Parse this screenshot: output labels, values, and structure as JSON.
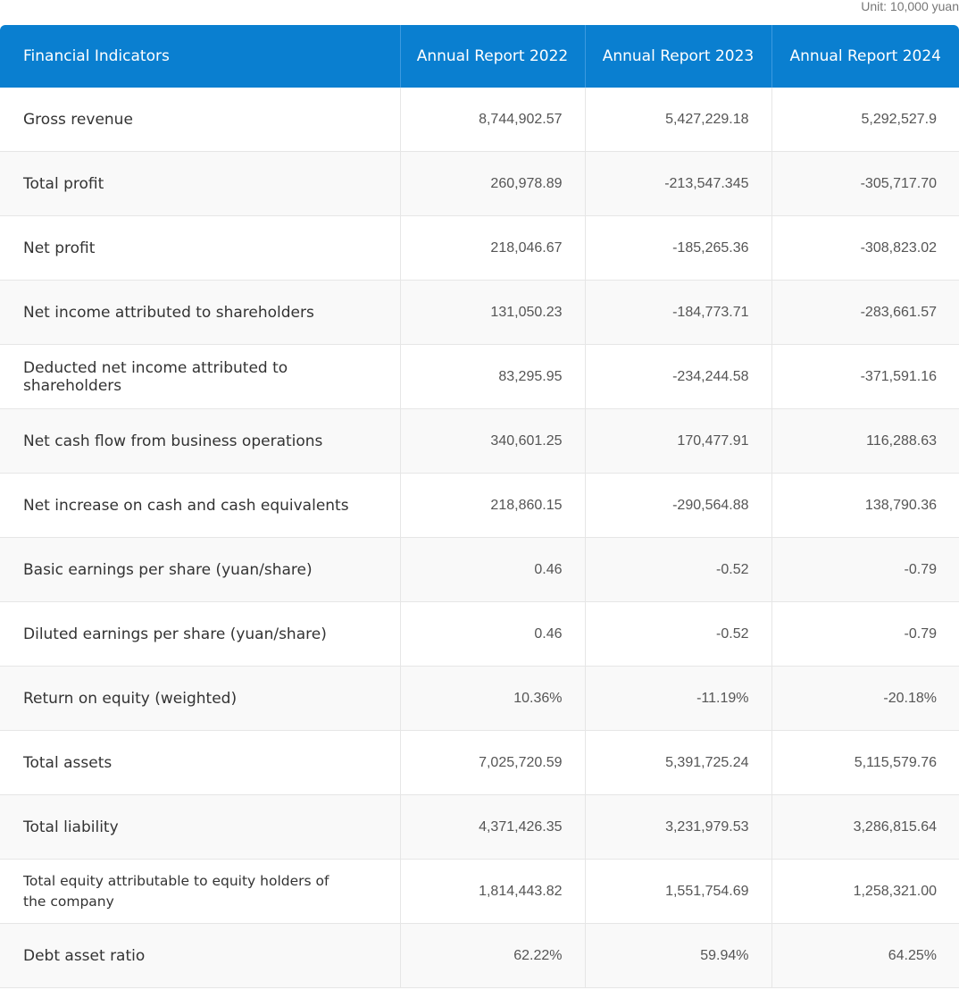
{
  "unit": "Unit: 10,000 yuan",
  "table": {
    "header": [
      "Financial Indicators",
      "Annual Report 2022",
      "Annual Report 2023",
      "Annual Report 2024"
    ],
    "rows": [
      [
        "Gross revenue",
        "8,744,902.57",
        "5,427,229.18",
        "5,292,527.9"
      ],
      [
        "Total profit",
        "260,978.89",
        "-213,547.345",
        "-305,717.70"
      ],
      [
        "Net profit",
        "218,046.67",
        "-185,265.36",
        "-308,823.02"
      ],
      [
        "Net income attributed to shareholders",
        "131,050.23",
        "-184,773.71",
        "-283,661.57"
      ],
      [
        "Deducted net income attributed to shareholders",
        "83,295.95",
        "-234,244.58",
        "-371,591.16"
      ],
      [
        "Net cash flow from business operations",
        "340,601.25",
        "170,477.91",
        "116,288.63"
      ],
      [
        "Net increase on cash and cash equivalents",
        "218,860.15",
        "-290,564.88",
        "138,790.36"
      ],
      [
        "Basic earnings per share (yuan/share)",
        "0.46",
        "-0.52",
        "-0.79"
      ],
      [
        "Diluted earnings per share (yuan/share)",
        "0.46",
        "-0.52",
        "-0.79"
      ],
      [
        "Return on equity (weighted)",
        "10.36%",
        "-11.19%",
        "-20.18%"
      ],
      [
        "Total assets",
        "7,025,720.59",
        "5,391,725.24",
        "5,115,579.76"
      ],
      [
        "Total liability",
        "4,371,426.35",
        "3,231,979.53",
        "3,286,815.64"
      ],
      [
        "Total equity attributable to equity holders of the company",
        "1,814,443.82",
        "1,551,754.69",
        "1,258,321.00"
      ],
      [
        "Debt asset ratio",
        "62.22%",
        "59.94%",
        "64.25%"
      ]
    ]
  }
}
